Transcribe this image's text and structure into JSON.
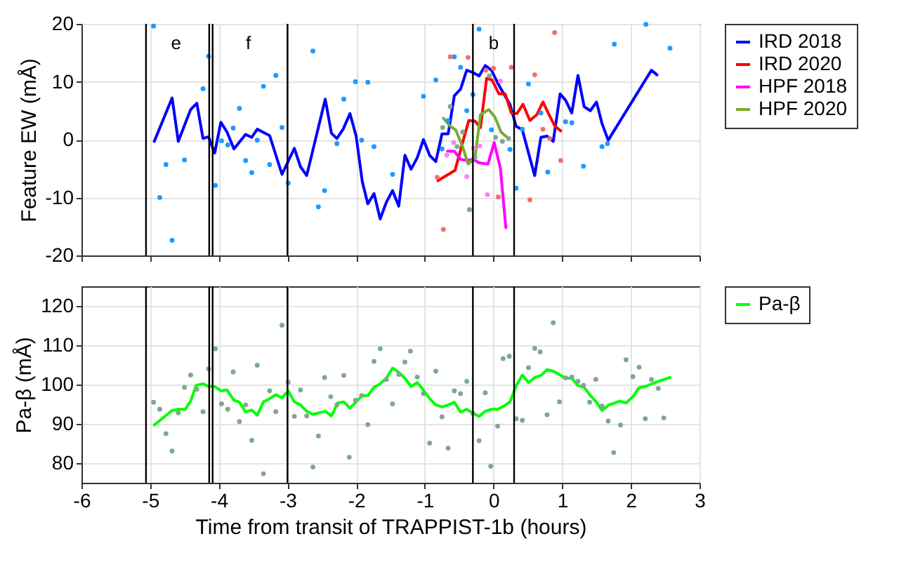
{
  "chart_data": [
    {
      "type": "line",
      "ylabel": "Feature EW (mÅ)",
      "xlim": [
        -6,
        3
      ],
      "xticks": [
        -6,
        -5,
        -4,
        -3,
        -2,
        -1,
        0,
        1,
        2,
        3
      ],
      "ylim": [
        -20,
        20
      ],
      "yticks": [
        -20,
        -10,
        0,
        10,
        20
      ],
      "grid": true,
      "legend": "right",
      "tick_labels": "y",
      "series": [
        {
          "name": "IRD 2018",
          "color": "#0000ff",
          "x": [
            -4.94,
            -4.68,
            -4.59,
            -4.41,
            -4.32,
            -4.23,
            -4.15,
            -4.06,
            -3.97,
            -3.88,
            -3.78,
            -3.61,
            -3.52,
            -3.44,
            -3.26,
            -3.08,
            -2.9,
            -2.81,
            -2.72,
            -2.45,
            -2.36,
            -2.28,
            -2.19,
            -2.09,
            -2.0,
            -1.91,
            -1.83,
            -1.74,
            -1.65,
            -1.56,
            -1.47,
            -1.38,
            -1.29,
            -1.2,
            -1.11,
            -1.02,
            -0.93,
            -0.84,
            -0.75,
            -0.66,
            -0.57,
            -0.48,
            -0.39,
            -0.3,
            -0.21,
            -0.12,
            -0.03,
            0.06,
            0.15,
            0.24,
            0.33,
            0.42,
            0.51,
            0.6,
            0.69,
            0.78,
            0.87,
            0.97,
            1.05,
            1.14,
            1.23,
            1.32,
            1.41,
            1.5,
            1.58,
            1.67,
            2.3,
            2.38
          ],
          "values": [
            -0.3,
            7.2,
            -0.3,
            5.2,
            6.3,
            0.2,
            0.5,
            -2.3,
            3.0,
            1.3,
            -1.6,
            0.9,
            0.4,
            1.8,
            0.7,
            -6.0,
            -1.5,
            -4.7,
            -6.2,
            7.0,
            1.1,
            0.2,
            1.8,
            4.5,
            0.6,
            -7.3,
            -11.1,
            -9.3,
            -13.7,
            -10.8,
            -8.8,
            -11.5,
            -2.7,
            -5.1,
            -3.1,
            0.0,
            -2.7,
            -3.8,
            1.0,
            1.0,
            7.6,
            8.7,
            12.0,
            11.6,
            11.0,
            12.8,
            12.0,
            9.8,
            7.9,
            6.1,
            2.3,
            1.7,
            -2.3,
            -6.2,
            0.4,
            0.6,
            -0.3,
            7.9,
            6.8,
            4.6,
            11.1,
            5.7,
            5.0,
            6.5,
            2.8,
            -0.1,
            12.0,
            11.2
          ]
        },
        {
          "name": "IRD 2020",
          "color": "#ff0000",
          "x": [
            -0.81,
            -0.56,
            -0.45,
            -0.36,
            -0.27,
            -0.19,
            -0.1,
            -0.02,
            0.08,
            0.17,
            0.26,
            0.34,
            0.43,
            0.53,
            0.63,
            0.72,
            0.81,
            0.89,
            0.98
          ],
          "values": [
            -7.1,
            -5.3,
            -0.5,
            3.3,
            3.2,
            2.1,
            10.6,
            10.3,
            7.9,
            7.9,
            4.6,
            4.5,
            6.1,
            3.3,
            4.3,
            6.5,
            4.3,
            2.4,
            1.5
          ]
        },
        {
          "name": "HPF 2018",
          "color": "#ff00ff",
          "x": [
            -0.67,
            -0.57,
            -0.48,
            -0.39,
            -0.3,
            -0.21,
            -0.08,
            0.01,
            0.1,
            0.18
          ],
          "values": [
            -2.0,
            -2.0,
            -3.4,
            -3.6,
            -3.4,
            -4.0,
            -4.2,
            -0.5,
            -4.9,
            -15.2
          ]
        },
        {
          "name": "HPF 2020",
          "color": "#77ac30",
          "x": [
            -0.73,
            -0.63,
            -0.55,
            -0.45,
            -0.37,
            -0.27,
            -0.19,
            -0.07,
            0.02,
            0.11,
            0.22
          ],
          "values": [
            3.7,
            2.3,
            1.7,
            -1.2,
            -4.2,
            -3.2,
            4.3,
            5.2,
            3.9,
            1.3,
            0.2
          ]
        },
        {
          "type": "scatter",
          "color": "#1e9bff",
          "x": [
            -4.95,
            -4.86,
            -4.77,
            -4.68,
            -4.5,
            -4.23,
            -4.15,
            -4.05,
            -3.96,
            -3.87,
            -3.79,
            -3.7,
            -3.61,
            -3.52,
            -3.44,
            -3.35,
            -3.26,
            -3.17,
            -3.08,
            -2.99,
            -2.63,
            -2.55,
            -2.46,
            -2.28,
            -2.18,
            -2.01,
            -1.92,
            -1.83,
            -1.74,
            -1.47,
            -1.02,
            -0.84,
            -0.75,
            -0.66,
            -0.57,
            -0.48,
            -0.39,
            -0.3,
            -0.21,
            -0.03,
            0.24,
            0.33,
            0.42,
            0.51,
            0.69,
            0.79,
            1.05,
            1.14,
            1.31,
            1.58,
            1.66,
            1.76,
            2.22,
            2.57
          ],
          "values": [
            19.6,
            -10.0,
            -4.3,
            -17.4,
            -3.5,
            8.8,
            14.4,
            -7.9,
            -0.2,
            -0.9,
            2.0,
            5.4,
            -3.6,
            -5.7,
            -0.1,
            9.2,
            -4.3,
            11.1,
            2.1,
            -7.5,
            15.3,
            -11.6,
            -8.8,
            -0.7,
            7.0,
            10.0,
            -0.1,
            9.9,
            -1.2,
            -6.0,
            7.5,
            10.3,
            -1.6,
            3.3,
            14.3,
            12.5,
            5.0,
            7.8,
            19.1,
            1.7,
            -1.7,
            -8.4,
            1.8,
            9.6,
            4.6,
            -5.6,
            3.1,
            2.9,
            -4.6,
            -1.2,
            -0.7,
            16.5,
            19.9,
            15.8
          ]
        },
        {
          "type": "scatter",
          "color": "#f07070",
          "x": [
            -0.82,
            -0.73,
            -0.63,
            -0.37,
            -0.11,
            0.0,
            0.07,
            0.26,
            0.53,
            0.6,
            0.72,
            0.82,
            0.89,
            0.98
          ],
          "values": [
            -6.5,
            -15.5,
            14.3,
            14.2,
            12.0,
            12.3,
            -9.9,
            12.5,
            -10.4,
            11.2,
            1.8,
            0.2,
            18.5,
            -3.6
          ]
        },
        {
          "type": "scatter",
          "color": "#ff80ff",
          "x": [
            -0.68,
            -0.58,
            -0.39,
            -0.29,
            -0.2,
            -0.09,
            0.1
          ],
          "values": [
            -2.7,
            -0.5,
            -6.4,
            -1.5,
            -1.1,
            -9.5,
            10.1
          ]
        },
        {
          "type": "scatter",
          "color": "#80a890",
          "x": [
            -0.74,
            -0.63,
            -0.53,
            -0.45,
            -0.35,
            -0.27,
            -0.06,
            0.03,
            0.13,
            0.22
          ],
          "values": [
            2.1,
            5.7,
            -1.2,
            1.3,
            -12.1,
            -3.1,
            11.0,
            0.4,
            -0.3,
            0.2
          ]
        }
      ],
      "ref_lines": [
        {
          "axis": "x",
          "value": -5.06
        },
        {
          "axis": "x",
          "value": -4.14
        },
        {
          "axis": "x",
          "value": -4.09
        },
        {
          "axis": "x",
          "value": -3.0
        },
        {
          "axis": "x",
          "value": -0.3
        },
        {
          "axis": "x",
          "value": 0.3
        }
      ],
      "annotations": [
        "e",
        "f",
        "b"
      ]
    },
    {
      "type": "line",
      "xlabel": "Time from transit of TRAPPIST-1b (hours)",
      "ylabel": "Pa-β (mÅ)",
      "xlim": [
        -6,
        3
      ],
      "xticks": [
        -6,
        -5,
        -4,
        -3,
        -2,
        -1,
        0,
        1,
        2,
        3
      ],
      "ylim": [
        75,
        125
      ],
      "yticks": [
        80,
        90,
        100,
        110,
        120
      ],
      "grid": true,
      "legend": "right",
      "series": [
        {
          "name": "Pa-β",
          "color": "#00ff00",
          "x": [
            -4.94,
            -4.68,
            -4.59,
            -4.49,
            -4.41,
            -4.33,
            -4.23,
            -4.15,
            -4.06,
            -3.97,
            -3.88,
            -3.78,
            -3.7,
            -3.61,
            -3.52,
            -3.44,
            -3.35,
            -3.26,
            -3.17,
            -3.08,
            -2.99,
            -2.9,
            -2.81,
            -2.72,
            -2.63,
            -2.45,
            -2.36,
            -2.27,
            -2.18,
            -2.09,
            -2.0,
            -1.91,
            -1.83,
            -1.74,
            -1.65,
            -1.56,
            -1.47,
            -1.38,
            -1.29,
            -1.2,
            -1.11,
            -1.02,
            -0.93,
            -0.84,
            -0.75,
            -0.66,
            -0.57,
            -0.48,
            -0.39,
            -0.3,
            -0.21,
            -0.12,
            -0.03,
            0.06,
            0.15,
            0.24,
            0.33,
            0.42,
            0.51,
            0.6,
            0.69,
            0.78,
            0.87,
            0.97,
            1.05,
            1.14,
            1.23,
            1.32,
            1.41,
            1.5,
            1.58,
            1.68,
            1.84,
            1.93,
            2.03,
            2.12,
            2.21,
            2.38,
            2.57
          ],
          "values": [
            89.7,
            93.4,
            93.7,
            93.7,
            95.8,
            99.8,
            100.2,
            99.5,
            99.5,
            98.4,
            98.6,
            96.0,
            95.5,
            93.0,
            93.5,
            92.2,
            95.6,
            96.4,
            97.4,
            96.6,
            98.4,
            95.6,
            94.8,
            93.2,
            92.4,
            93.2,
            92.0,
            95.3,
            95.6,
            94.0,
            95.6,
            97.2,
            97.2,
            99.3,
            100.2,
            101.6,
            104.2,
            103.1,
            101.6,
            99.5,
            100.5,
            98.6,
            96.4,
            94.8,
            94.3,
            94.8,
            95.5,
            93.0,
            93.7,
            92.7,
            91.9,
            93.2,
            93.7,
            93.7,
            94.5,
            95.6,
            99.7,
            102.4,
            100.5,
            101.8,
            102.3,
            103.8,
            103.4,
            102.4,
            101.6,
            101.6,
            99.7,
            99.3,
            97.2,
            95.5,
            93.4,
            94.8,
            95.8,
            95.3,
            96.9,
            99.2,
            99.5,
            100.7,
            101.8
          ]
        },
        {
          "type": "scatter",
          "color": "#80a890",
          "x": [
            -4.95,
            -4.86,
            -4.77,
            -4.68,
            -4.59,
            -4.5,
            -4.41,
            -4.32,
            -4.23,
            -4.15,
            -4.05,
            -3.96,
            -3.87,
            -3.79,
            -3.7,
            -3.61,
            -3.52,
            -3.44,
            -3.35,
            -3.26,
            -3.17,
            -3.08,
            -2.99,
            -2.9,
            -2.81,
            -2.72,
            -2.63,
            -2.55,
            -2.46,
            -2.37,
            -2.28,
            -2.18,
            -2.1,
            -2.01,
            -1.92,
            -1.83,
            -1.74,
            -1.65,
            -1.56,
            -1.47,
            -1.38,
            -1.29,
            -1.21,
            -1.11,
            -1.02,
            -0.93,
            -0.84,
            -0.75,
            -0.66,
            -0.57,
            -0.48,
            -0.39,
            -0.3,
            -0.21,
            -0.12,
            -0.04,
            0.06,
            0.14,
            0.23,
            0.33,
            0.42,
            0.51,
            0.6,
            0.68,
            0.78,
            0.87,
            0.96,
            1.05,
            1.14,
            1.23,
            1.31,
            1.4,
            1.49,
            1.58,
            1.67,
            1.75,
            1.85,
            1.93,
            2.03,
            2.12,
            2.21,
            2.3,
            2.4,
            2.48
          ],
          "values": [
            95.5,
            93.7,
            87.5,
            83.1,
            92.8,
            99.3,
            102.4,
            98.8,
            93.1,
            104.0,
            109.1,
            95.1,
            93.7,
            103.2,
            90.6,
            94.8,
            85.8,
            104.9,
            77.3,
            98.4,
            93.1,
            115.1,
            100.6,
            91.9,
            98.6,
            92.0,
            79.0,
            86.9,
            101.8,
            96.9,
            94.8,
            102.3,
            81.5,
            96.0,
            97.2,
            89.8,
            105.9,
            109.1,
            101.3,
            95.1,
            102.6,
            105.7,
            108.5,
            101.9,
            97.7,
            85.1,
            103.4,
            91.8,
            83.8,
            98.4,
            97.7,
            100.8,
            92.7,
            85.7,
            97.9,
            79.2,
            89.4,
            106.6,
            107.2,
            91.3,
            90.9,
            104.3,
            109.2,
            108.3,
            92.3,
            115.7,
            95.6,
            101.7,
            101.9,
            100.8,
            99.8,
            95.5,
            101.3,
            94.5,
            90.7,
            82.7,
            89.7,
            106.3,
            102.0,
            104.4,
            91.3,
            101.3,
            99.0,
            91.5
          ]
        }
      ],
      "ref_lines": [
        {
          "axis": "x",
          "value": -5.06
        },
        {
          "axis": "x",
          "value": -4.14
        },
        {
          "axis": "x",
          "value": -4.09
        },
        {
          "axis": "x",
          "value": -3.0
        },
        {
          "axis": "x",
          "value": -0.3
        },
        {
          "axis": "x",
          "value": 0.3
        }
      ]
    }
  ]
}
